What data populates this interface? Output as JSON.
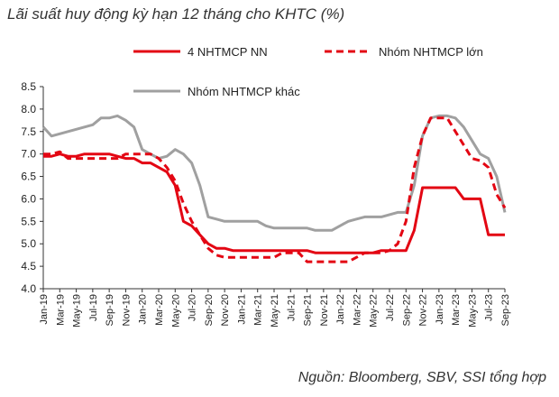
{
  "title": "Lãi suất huy động kỳ hạn 12 tháng cho KHTC (%)",
  "source": "Nguồn:  Bloomberg, SBV, SSI tổng hợp",
  "chart_data": {
    "type": "line",
    "ylim": [
      4.0,
      8.5
    ],
    "yticks": [
      "4.0",
      "4.5",
      "5.0",
      "5.5",
      "6.0",
      "6.5",
      "7.0",
      "7.5",
      "8.0",
      "8.5"
    ],
    "grid": false,
    "legend_position": "top",
    "x": [
      "Jan-19",
      "Feb-19",
      "Mar-19",
      "Apr-19",
      "May-19",
      "Jun-19",
      "Jul-19",
      "Aug-19",
      "Sep-19",
      "Oct-19",
      "Nov-19",
      "Dec-19",
      "Jan-20",
      "Feb-20",
      "Mar-20",
      "Apr-20",
      "May-20",
      "Jun-20",
      "Jul-20",
      "Aug-20",
      "Sep-20",
      "Oct-20",
      "Nov-20",
      "Dec-20",
      "Jan-21",
      "Feb-21",
      "Mar-21",
      "Apr-21",
      "May-21",
      "Jun-21",
      "Jul-21",
      "Aug-21",
      "Sep-21",
      "Oct-21",
      "Nov-21",
      "Dec-21",
      "Jan-22",
      "Feb-22",
      "Mar-22",
      "Apr-22",
      "May-22",
      "Jun-22",
      "Jul-22",
      "Aug-22",
      "Sep-22",
      "Oct-22",
      "Nov-22",
      "Dec-22",
      "Jan-23",
      "Feb-23",
      "Mar-23",
      "Apr-23",
      "May-23",
      "Jun-23",
      "Jul-23",
      "Aug-23",
      "Sep-23"
    ],
    "xtick_labels": [
      "Jan-19",
      "Mar-19",
      "May-19",
      "Jul-19",
      "Sep-19",
      "Nov-19",
      "Jan-20",
      "Mar-20",
      "May-20",
      "Jul-20",
      "Sep-20",
      "Nov-20",
      "Jan-21",
      "Mar-21",
      "May-21",
      "Jul-21",
      "Sep-21",
      "Nov-21",
      "Jan-22",
      "Mar-22",
      "May-22",
      "Jul-22",
      "Sep-22",
      "Nov-22",
      "Jan-23",
      "Mar-23",
      "May-23",
      "Jul-23",
      "Sep-23"
    ],
    "series": [
      {
        "name": "4 NHTMCP NN",
        "color": "#e30613",
        "style": "solid",
        "values": [
          6.95,
          6.95,
          7.0,
          6.95,
          6.95,
          7.0,
          7.0,
          7.0,
          7.0,
          6.95,
          6.9,
          6.9,
          6.8,
          6.8,
          6.7,
          6.6,
          6.3,
          5.5,
          5.4,
          5.2,
          5.0,
          4.9,
          4.9,
          4.85,
          4.85,
          4.85,
          4.85,
          4.85,
          4.85,
          4.85,
          4.85,
          4.85,
          4.85,
          4.8,
          4.8,
          4.8,
          4.8,
          4.8,
          4.8,
          4.8,
          4.8,
          4.85,
          4.85,
          4.85,
          4.85,
          5.3,
          6.25,
          6.25,
          6.25,
          6.25,
          6.25,
          6.0,
          6.0,
          6.0,
          5.2,
          5.2,
          5.2
        ]
      },
      {
        "name": "Nhóm NHTMCP lớn",
        "color": "#e30613",
        "style": "dashed",
        "values": [
          7.0,
          7.0,
          7.05,
          6.9,
          6.9,
          6.9,
          6.9,
          6.9,
          6.9,
          6.9,
          7.0,
          7.0,
          7.0,
          7.0,
          6.9,
          6.7,
          6.4,
          5.9,
          5.5,
          5.2,
          4.9,
          4.75,
          4.7,
          4.7,
          4.7,
          4.7,
          4.7,
          4.7,
          4.7,
          4.8,
          4.8,
          4.8,
          4.6,
          4.6,
          4.6,
          4.6,
          4.6,
          4.6,
          4.7,
          4.8,
          4.8,
          4.8,
          4.85,
          5.0,
          5.5,
          6.7,
          7.4,
          7.8,
          7.8,
          7.8,
          7.5,
          7.2,
          6.9,
          6.85,
          6.7,
          6.1,
          5.8
        ]
      },
      {
        "name": "Nhóm NHTMCP khác",
        "color": "#a0a0a0",
        "style": "solid",
        "values": [
          7.6,
          7.4,
          7.45,
          7.5,
          7.55,
          7.6,
          7.65,
          7.8,
          7.8,
          7.85,
          7.75,
          7.6,
          7.1,
          7.0,
          6.9,
          6.95,
          7.1,
          7.0,
          6.8,
          6.3,
          5.6,
          5.55,
          5.5,
          5.5,
          5.5,
          5.5,
          5.5,
          5.4,
          5.35,
          5.35,
          5.35,
          5.35,
          5.35,
          5.3,
          5.3,
          5.3,
          5.4,
          5.5,
          5.55,
          5.6,
          5.6,
          5.6,
          5.65,
          5.7,
          5.7,
          6.3,
          7.4,
          7.8,
          7.85,
          7.85,
          7.8,
          7.6,
          7.3,
          7.0,
          6.9,
          6.5,
          5.7
        ]
      }
    ]
  }
}
